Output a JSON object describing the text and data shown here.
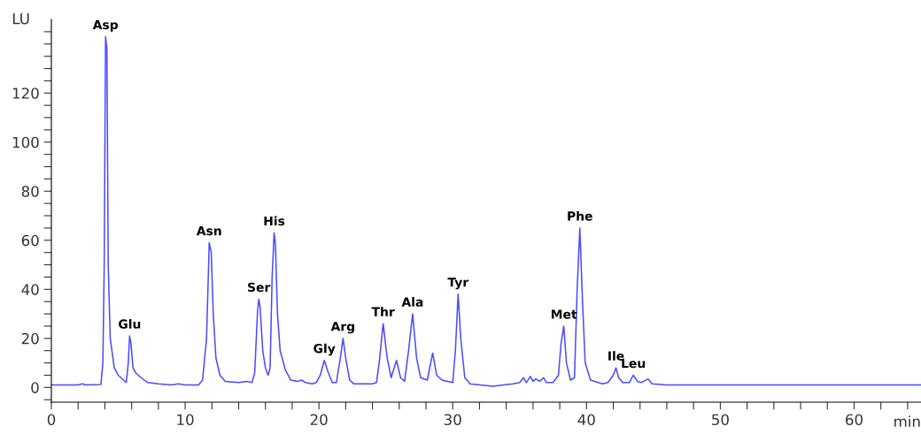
{
  "chart_data": {
    "type": "line",
    "xlabel": "min",
    "ylabel": "LU",
    "line_style": "solid",
    "marker": "none",
    "grid": false,
    "series": [
      {
        "color": "#4a4aff",
        "x": [
          0,
          2,
          2.3,
          2.6,
          3.7,
          3.85,
          3.95,
          4.05,
          4.15,
          4.25,
          4.4,
          4.7,
          5.0,
          5.4,
          5.6,
          5.75,
          5.85,
          5.95,
          6.1,
          6.3,
          6.7,
          7.2,
          8,
          9,
          9.5,
          10,
          11,
          11.3,
          11.6,
          11.8,
          11.95,
          12.1,
          12.3,
          12.6,
          13,
          14,
          14.6,
          15,
          15.2,
          15.4,
          15.5,
          15.6,
          15.8,
          16.0,
          16.2,
          16.35,
          16.5,
          16.65,
          16.75,
          16.9,
          17.1,
          17.5,
          17.9,
          18.4,
          18.7,
          19,
          19.5,
          19.8,
          20.1,
          20.4,
          20.7,
          21,
          21.3,
          21.6,
          21.8,
          22,
          22.3,
          22.6,
          24,
          24.3,
          24.5,
          24.8,
          25.1,
          25.4,
          25.8,
          26.1,
          26.4,
          26.7,
          27,
          27.3,
          27.6,
          28.1,
          28.5,
          28.8,
          29.2,
          29.6,
          30,
          30.2,
          30.4,
          30.6,
          30.9,
          31.3,
          33,
          34.5,
          35,
          35.3,
          35.5,
          35.8,
          36,
          36.2,
          36.5,
          36.8,
          37,
          37.5,
          37.9,
          38.1,
          38.3,
          38.5,
          38.8,
          39.1,
          39.3,
          39.5,
          39.7,
          39.9,
          40.3,
          41.2,
          41.6,
          42.0,
          42.2,
          42.4,
          42.7,
          43.2,
          43.5,
          43.8,
          44.1,
          44.6,
          44.9,
          46,
          60,
          65
        ],
        "values": [
          1,
          1,
          1.5,
          1,
          1.2,
          10,
          50,
          143,
          138,
          50,
          20,
          8,
          5,
          3,
          2,
          10,
          21,
          18,
          8,
          6,
          4,
          2,
          1.5,
          1,
          1.5,
          1,
          1,
          3,
          20,
          59,
          55,
          30,
          12,
          5,
          2.5,
          2,
          2.5,
          2,
          6,
          30,
          36,
          33,
          15,
          8,
          5,
          8,
          45,
          63,
          58,
          30,
          15,
          7,
          3,
          2.5,
          3,
          2,
          1.5,
          2,
          5,
          11,
          6,
          2,
          2,
          12,
          20,
          12,
          3,
          1.5,
          1.5,
          2,
          10,
          26,
          12,
          4,
          11,
          4,
          2.5,
          15,
          30,
          12,
          4,
          3,
          14,
          5,
          3,
          2.5,
          2,
          15,
          38,
          20,
          4,
          1.5,
          0.5,
          1.5,
          2,
          4,
          2,
          4.5,
          2.5,
          3.5,
          2.5,
          4,
          2,
          2,
          5,
          18,
          25,
          10,
          3,
          4,
          40,
          65,
          35,
          10,
          3,
          1.5,
          2,
          5,
          8,
          4,
          2,
          2,
          5,
          2.5,
          2,
          3.5,
          1.5,
          1,
          1,
          1
        ]
      }
    ],
    "xlim": [
      0,
      65
    ],
    "ylim": [
      -6,
      150
    ],
    "xticks": [
      0,
      {
        "value": 2,
        "label": null
      },
      {
        "value": 4,
        "label": null
      },
      {
        "value": 6,
        "label": null
      },
      {
        "value": 8,
        "label": null
      },
      10,
      {
        "value": 12,
        "label": null
      },
      {
        "value": 14,
        "label": null
      },
      {
        "value": 16,
        "label": null
      },
      {
        "value": 18,
        "label": null
      },
      20,
      {
        "value": 22,
        "label": null
      },
      {
        "value": 24,
        "label": null
      },
      {
        "value": 26,
        "label": null
      },
      {
        "value": 28,
        "label": null
      },
      30,
      {
        "value": 32,
        "label": null
      },
      {
        "value": 34,
        "label": null
      },
      {
        "value": 36,
        "label": null
      },
      {
        "value": 38,
        "label": null
      },
      40,
      {
        "value": 42,
        "label": null
      },
      {
        "value": 44,
        "label": null
      },
      {
        "value": 46,
        "label": null
      },
      {
        "value": 48,
        "label": null
      },
      50,
      {
        "value": 52,
        "label": null
      },
      {
        "value": 54,
        "label": null
      },
      {
        "value": 56,
        "label": null
      },
      {
        "value": 58,
        "label": null
      },
      60,
      {
        "value": 62,
        "label": null
      },
      {
        "value": 64,
        "label": null
      }
    ],
    "yticks": [
      {
        "value": -5,
        "label": null
      },
      0,
      {
        "value": 5,
        "label": null
      },
      {
        "value": 10,
        "label": null
      },
      {
        "value": 15,
        "label": null
      },
      20,
      {
        "value": 25,
        "label": null
      },
      {
        "value": 30,
        "label": null
      },
      {
        "value": 35,
        "label": null
      },
      40,
      {
        "value": 45,
        "label": null
      },
      {
        "value": 50,
        "label": null
      },
      {
        "value": 55,
        "label": null
      },
      60,
      {
        "value": 65,
        "label": null
      },
      {
        "value": 70,
        "label": null
      },
      {
        "value": 75,
        "label": null
      },
      80,
      {
        "value": 85,
        "label": null
      },
      {
        "value": 90,
        "label": null
      },
      {
        "value": 95,
        "label": null
      },
      100,
      {
        "value": 105,
        "label": null
      },
      {
        "value": 110,
        "label": null
      },
      {
        "value": 115,
        "label": null
      },
      120,
      {
        "value": 125,
        "label": null
      },
      {
        "value": 130,
        "label": null
      },
      {
        "value": 135,
        "label": null
      },
      {
        "value": 140,
        "label": null
      },
      {
        "value": 145,
        "label": null
      }
    ],
    "annotations": [
      {
        "text": "Asp",
        "x": 4.05,
        "y": 143
      },
      {
        "text": "Glu",
        "x": 5.85,
        "y": 21
      },
      {
        "text": "Asn",
        "x": 11.8,
        "y": 59
      },
      {
        "text": "Ser",
        "x": 15.5,
        "y": 36
      },
      {
        "text": "His",
        "x": 16.65,
        "y": 63
      },
      {
        "text": "Gly",
        "x": 20.4,
        "y": 11
      },
      {
        "text": "Arg",
        "x": 21.8,
        "y": 20
      },
      {
        "text": "Thr",
        "x": 24.8,
        "y": 26
      },
      {
        "text": "Ala",
        "x": 27,
        "y": 30
      },
      {
        "text": "Tyr",
        "x": 30.4,
        "y": 38
      },
      {
        "text": "Met",
        "x": 38.3,
        "y": 25
      },
      {
        "text": "Phe",
        "x": 39.5,
        "y": 65
      },
      {
        "text": "Ile",
        "x": 42.2,
        "y": 8
      },
      {
        "text": "Leu",
        "x": 43.5,
        "y": 5
      }
    ]
  }
}
